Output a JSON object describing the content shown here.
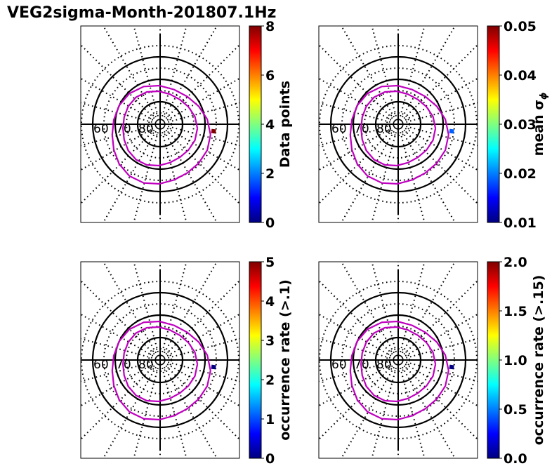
{
  "title": "VEG2sigma-Month-201807.1Hz",
  "colormap": [
    "#00007f",
    "#0000ff",
    "#007fff",
    "#00ffff",
    "#7fff7f",
    "#ffff00",
    "#ff7f00",
    "#ff0000",
    "#7f0000"
  ],
  "chart_data": [
    {
      "type": "polar-dial",
      "colorbar_label": "Data points",
      "colorbar_range": [
        0,
        8
      ],
      "colorbar_ticks": [
        "0",
        "2",
        "4",
        "6",
        "8"
      ],
      "latitude_labels": [
        "60",
        "70",
        "80"
      ],
      "latitude_rings": [
        60,
        70,
        80
      ],
      "mlt_spokes_hours": [
        0,
        6,
        12,
        18
      ],
      "boundary_color": "#bf00bf",
      "data_segment": {
        "mlt_hours": 5.5,
        "mlat_range": [
          65,
          67
        ],
        "value": 8,
        "color": "#800000"
      }
    },
    {
      "type": "polar-dial",
      "colorbar_label": "mean σ",
      "colorbar_label_subscript": "ϕ",
      "colorbar_range": [
        0.01,
        0.05
      ],
      "colorbar_ticks": [
        "0.01",
        "0.02",
        "0.03",
        "0.04",
        "0.05"
      ],
      "latitude_labels": [
        "60",
        "70",
        "80"
      ],
      "latitude_rings": [
        60,
        70,
        80
      ],
      "mlt_spokes_hours": [
        0,
        6,
        12,
        18
      ],
      "boundary_color": "#bf00bf",
      "data_segment": {
        "mlt_hours": 5.5,
        "mlat_range": [
          65,
          67
        ],
        "value": 0.021,
        "color": "#0060ff"
      }
    },
    {
      "type": "polar-dial",
      "colorbar_label": "occurrence rate (>.1)",
      "colorbar_range": [
        0,
        5
      ],
      "colorbar_ticks": [
        "0",
        "1",
        "2",
        "3",
        "4",
        "5"
      ],
      "latitude_labels": [
        "60",
        "70",
        "80"
      ],
      "latitude_rings": [
        60,
        70,
        80
      ],
      "mlt_spokes_hours": [
        0,
        6,
        12,
        18
      ],
      "boundary_color": "#bf00bf",
      "data_segment": {
        "mlt_hours": 5.5,
        "mlat_range": [
          65,
          67
        ],
        "value": 0,
        "color": "#00007f"
      }
    },
    {
      "type": "polar-dial",
      "colorbar_label": "occurrence rate (>.15)",
      "colorbar_range": [
        0,
        2
      ],
      "colorbar_ticks": [
        "0.0",
        "0.5",
        "1.0",
        "1.5",
        "2.0"
      ],
      "latitude_labels": [
        "60",
        "70",
        "80"
      ],
      "latitude_rings": [
        60,
        70,
        80
      ],
      "mlt_spokes_hours": [
        0,
        6,
        12,
        18
      ],
      "boundary_color": "#bf00bf",
      "data_segment": {
        "mlt_hours": 5.5,
        "mlat_range": [
          65,
          67
        ],
        "value": 0,
        "color": "#00007f"
      }
    }
  ]
}
